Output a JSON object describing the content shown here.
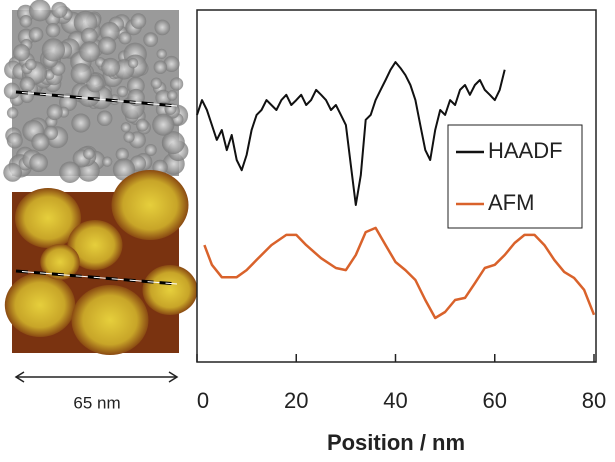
{
  "chart_data": {
    "type": "line",
    "x_label": "Position / nm",
    "scale_label": "65 nm",
    "xlim": [
      0,
      80
    ],
    "xticks": [
      0,
      20,
      40,
      60,
      80
    ],
    "ylim": [
      0,
      100
    ],
    "legend": "right",
    "series": [
      {
        "name": "HAADF",
        "color": "#111111",
        "x": [
          0,
          1,
          2,
          3,
          4,
          5,
          6,
          7,
          8,
          9,
          10,
          11,
          12,
          13,
          14,
          15,
          16,
          17,
          18,
          19,
          20,
          21,
          22,
          23,
          24,
          25,
          26,
          27,
          28,
          29,
          30,
          31,
          32,
          33,
          34,
          35,
          36,
          37,
          38,
          39,
          40,
          41,
          42,
          43,
          44,
          45,
          46,
          47,
          48,
          49,
          50,
          51,
          52,
          53,
          54,
          55,
          56,
          57,
          58,
          59,
          60,
          61,
          62
        ],
        "values": [
          70.2,
          74.4,
          71.6,
          67.3,
          63.1,
          65.9,
          60.2,
          64.5,
          57.4,
          54.5,
          58.8,
          65.9,
          70.2,
          71.6,
          74.4,
          73,
          71.6,
          74.4,
          75.9,
          73,
          74.4,
          75.9,
          73,
          74.4,
          77.3,
          75.9,
          74.4,
          71.6,
          73,
          70.2,
          67.3,
          56,
          44.6,
          53.1,
          68.8,
          70.2,
          74.4,
          77.3,
          80.1,
          83,
          85.2,
          83.5,
          81.5,
          78.7,
          74.4,
          67.3,
          60.2,
          57.4,
          65.9,
          71.6,
          70.2,
          74.4,
          73,
          77.3,
          78.7,
          75.9,
          78.7,
          80.1,
          77.3,
          75.9,
          74.4,
          77.3,
          83
        ]
      },
      {
        "name": "AFM",
        "color": "#d9622b",
        "x": [
          1.5,
          3,
          5,
          8,
          10,
          12,
          15,
          18,
          20,
          22,
          25,
          28,
          30,
          32,
          34,
          36,
          38,
          40,
          42,
          44,
          46,
          48,
          50,
          52,
          54,
          56,
          58,
          60,
          62,
          64,
          66,
          68,
          70,
          72,
          74,
          76,
          78,
          80
        ],
        "values": [
          33.2,
          27.6,
          24.1,
          24.1,
          26.1,
          29,
          33.2,
          36.1,
          36.1,
          33.2,
          29.5,
          26.7,
          26.1,
          30.4,
          36.9,
          38.1,
          33.2,
          28.4,
          26.1,
          23.3,
          17.6,
          12.5,
          14.2,
          17.6,
          18.2,
          22.4,
          26.7,
          27.6,
          30.4,
          33.8,
          36.1,
          36.1,
          33.2,
          29,
          25.6,
          23.9,
          20.5,
          13.4
        ]
      }
    ]
  }
}
